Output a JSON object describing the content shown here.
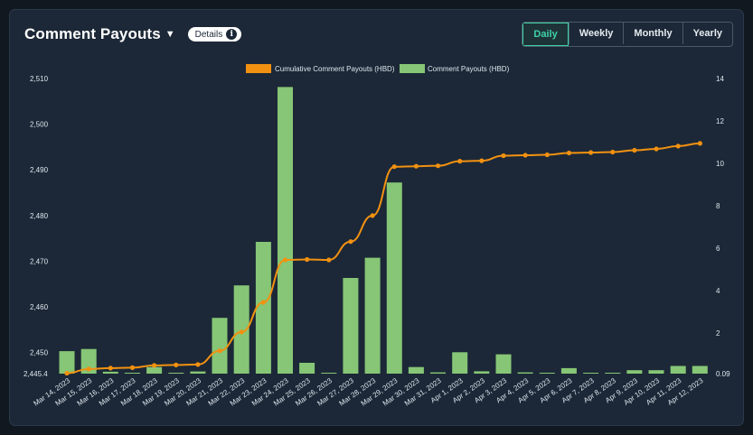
{
  "header": {
    "title": "Comment Payouts",
    "details_label": "Details",
    "title_chevron_icon": "chevron-down-icon",
    "details_icon": "info-icon",
    "ranges": [
      "Daily",
      "Weekly",
      "Monthly",
      "Yearly"
    ],
    "active_range": "Daily"
  },
  "colors": {
    "cumulative": "#f29111",
    "payouts": "#86c676",
    "accent_active": "#3fd3a8"
  },
  "chart_data": {
    "type": "bar",
    "categories": [
      "Mar 14, 2023",
      "Mar 15, 2023",
      "Mar 16, 2023",
      "Mar 17, 2023",
      "Mar 18, 2023",
      "Mar 19, 2023",
      "Mar 20, 2023",
      "Mar 21, 2023",
      "Mar 22, 2023",
      "Mar 23, 2023",
      "Mar 24, 2023",
      "Mar 25, 2023",
      "Mar 26, 2023",
      "Mar 27, 2023",
      "Mar 28, 2023",
      "Mar 29, 2023",
      "Mar 30, 2023",
      "Mar 31, 2023",
      "Apr 1, 2023",
      "Apr 2, 2023",
      "Apr 3, 2023",
      "Apr 4, 2023",
      "Apr 5, 2023",
      "Apr 6, 2023",
      "Apr 7, 2023",
      "Apr 8, 2023",
      "Apr 9, 2023",
      "Apr 10, 2023",
      "Apr 11, 2023",
      "Apr 12, 2023"
    ],
    "series": [
      {
        "name": "Cumulative Comment Payouts (HBD)",
        "type": "line",
        "axis": "left",
        "values": [
          2445.5,
          2446.4,
          2446.6,
          2446.7,
          2447.2,
          2447.3,
          2447.4,
          2450.4,
          2454.5,
          2461.0,
          2470.3,
          2470.4,
          2470.3,
          2474.3,
          2480.0,
          2490.7,
          2490.8,
          2490.9,
          2491.9,
          2492.0,
          2493.1,
          2493.2,
          2493.3,
          2493.7,
          2493.8,
          2493.9,
          2494.3,
          2494.6,
          2495.2,
          2495.8
        ]
      },
      {
        "name": "Comment Payouts (HBD)",
        "type": "bar",
        "axis": "right",
        "values": [
          1.15,
          1.25,
          0.18,
          0.12,
          0.4,
          0.07,
          0.19,
          2.72,
          4.25,
          6.3,
          13.6,
          0.6,
          0.1,
          4.6,
          5.55,
          9.1,
          0.4,
          0.15,
          1.1,
          0.2,
          1.0,
          0.15,
          0.11,
          0.35,
          0.07,
          0.1,
          0.25,
          0.25,
          0.45,
          0.45
        ]
      }
    ],
    "left_axis": {
      "ticks": [
        "2,445.4",
        "2,450",
        "2,460",
        "2,470",
        "2,480",
        "2,490",
        "2,500",
        "2,510"
      ],
      "range": [
        2445.4,
        2510
      ]
    },
    "right_axis": {
      "ticks": [
        "0.09",
        "2",
        "4",
        "6",
        "8",
        "10",
        "12",
        "14"
      ],
      "range": [
        0.09,
        14
      ]
    },
    "legend_position": "top-center",
    "grid": false
  }
}
